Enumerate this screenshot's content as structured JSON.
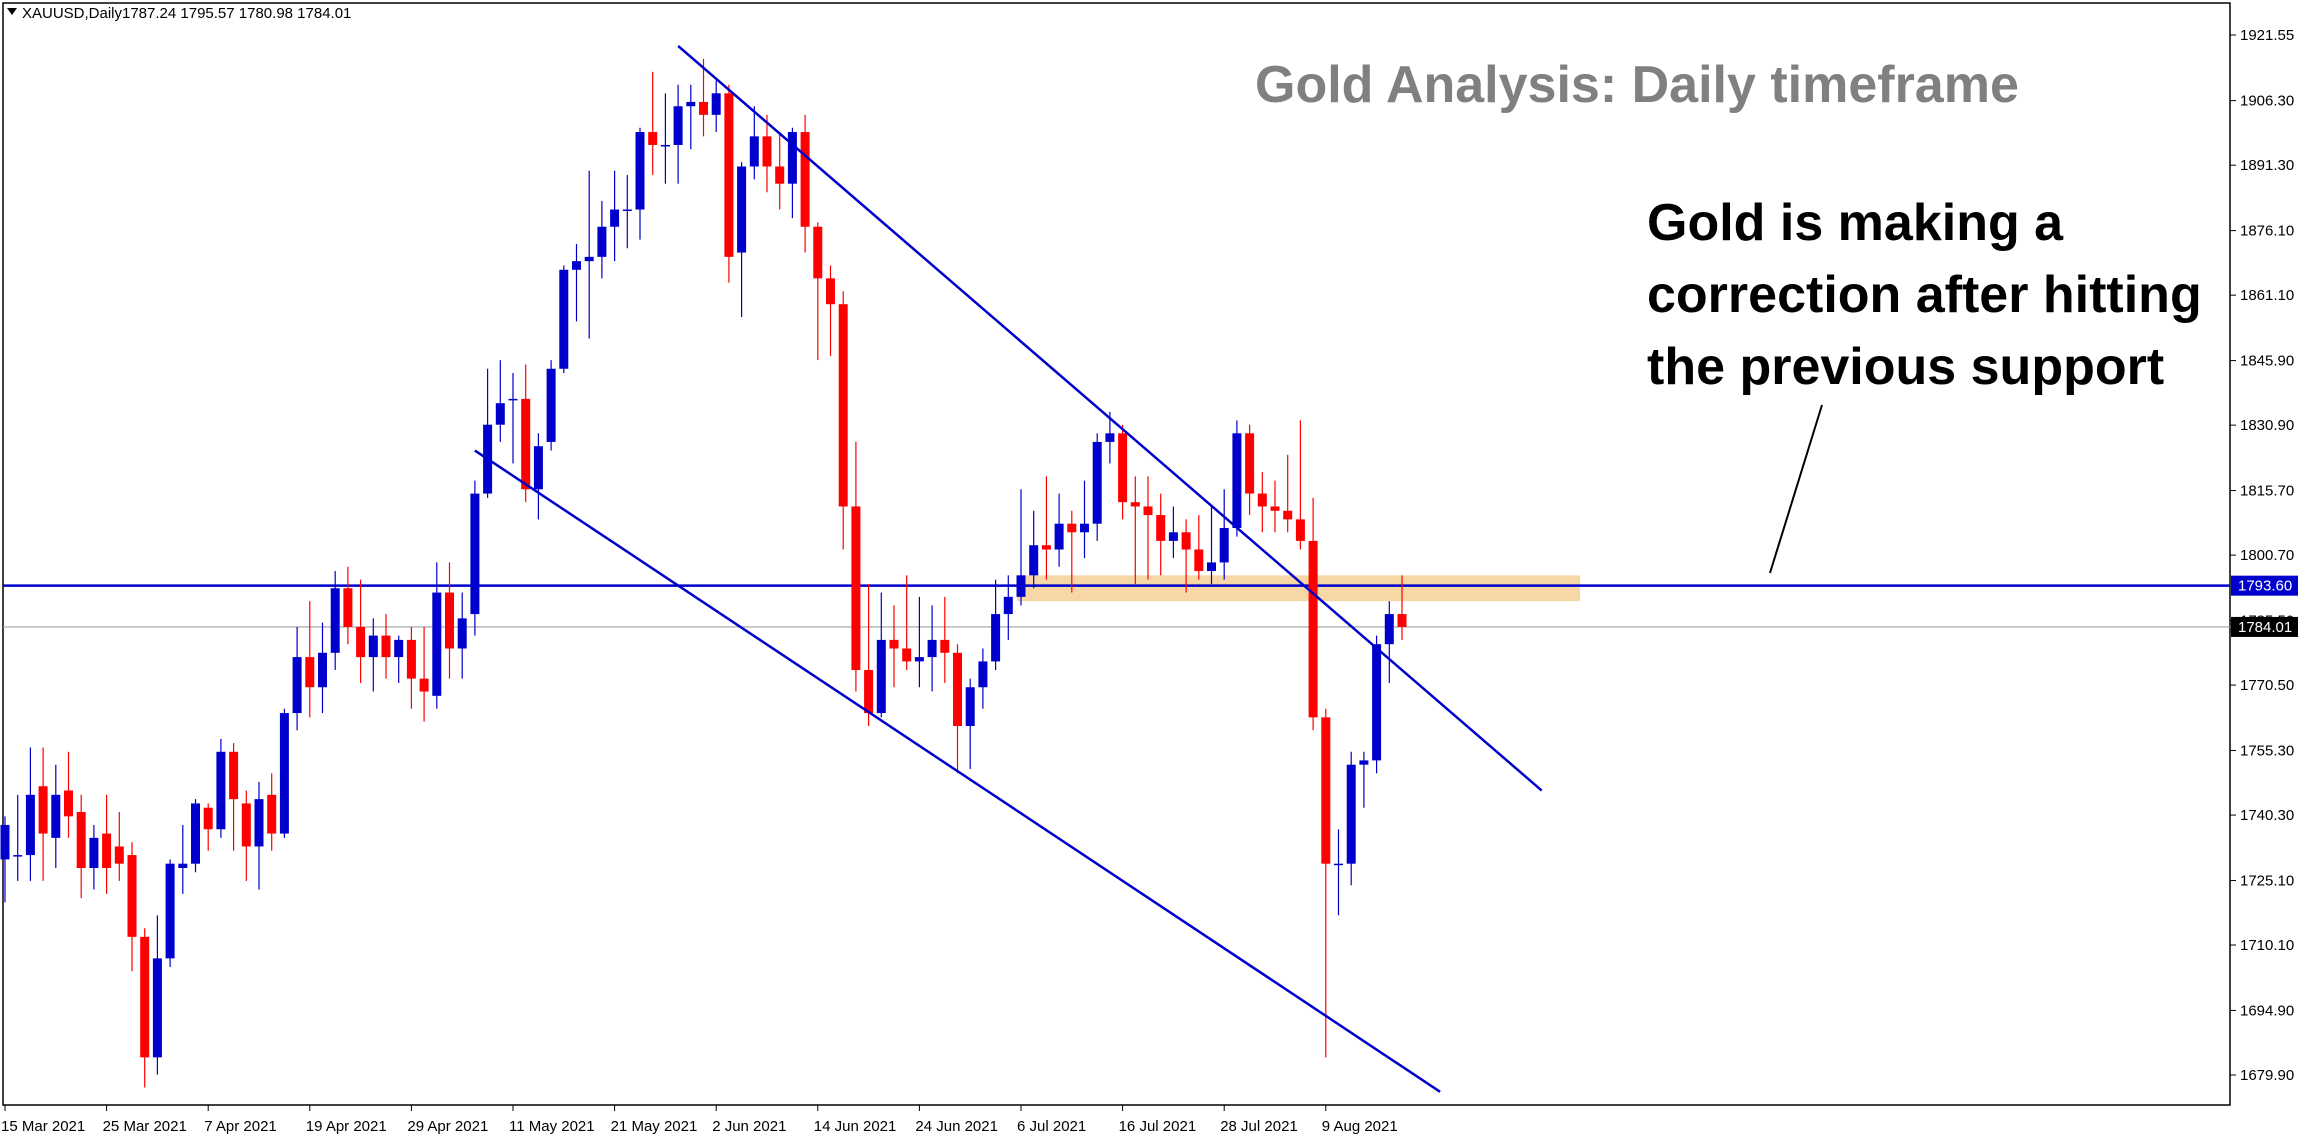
{
  "header": {
    "symbol": "XAUUSD,Daily",
    "ohlc": "1787.24 1795.57 1780.98 1784.01"
  },
  "annotations": {
    "title": "Gold Analysis: Daily timeframe",
    "note_lines": [
      "Gold is making a",
      "correction after hitting",
      "the previous support"
    ]
  },
  "colors": {
    "bull": "#0000cc",
    "bear": "#ff0000",
    "trendline": "#0000cc",
    "support_zone": "#f5c98a",
    "current_price_line": "#a0a0a0",
    "title": "#808080"
  },
  "chart_data": {
    "type": "candlestick",
    "symbol": "XAUUSD",
    "timeframe": "Daily",
    "y_ticks": [
      "1921.55",
      "1906.30",
      "1891.30",
      "1876.10",
      "1861.10",
      "1845.90",
      "1830.90",
      "1815.70",
      "1800.70",
      "1785.50",
      "1770.50",
      "1755.30",
      "1740.30",
      "1725.10",
      "1710.10",
      "1694.90",
      "1679.90"
    ],
    "ylim": [
      1675,
      1926
    ],
    "x_ticks": [
      "15 Mar 2021",
      "25 Mar 2021",
      "7 Apr 2021",
      "19 Apr 2021",
      "29 Apr 2021",
      "11 May 2021",
      "21 May 2021",
      "2 Jun 2021",
      "14 Jun 2021",
      "24 Jun 2021",
      "6 Jul 2021",
      "16 Jul 2021",
      "28 Jul 2021",
      "9 Aug 2021"
    ],
    "resistance_level": 1793.6,
    "resistance_label": "1793.60",
    "current_price": 1784.01,
    "current_price_label": "1784.01",
    "support_zone": {
      "from_date": "6 Jul 2021",
      "to_date": "20 Aug 2021",
      "low": 1790,
      "high": 1796
    },
    "trendlines": [
      {
        "name": "upper",
        "from": {
          "date": "28 May 2021",
          "price": 1919
        },
        "to": {
          "date": "1 Sep 2021",
          "price": 1746
        }
      },
      {
        "name": "lower",
        "from": {
          "date": "6 May 2021",
          "price": 1825
        },
        "to": {
          "date": "20 Aug 2021",
          "price": 1676
        }
      }
    ],
    "candles": [
      {
        "d": "15 Mar 2021",
        "o": 1730,
        "h": 1740,
        "l": 1720,
        "c": 1738
      },
      {
        "d": "16 Mar 2021",
        "o": 1731,
        "h": 1745,
        "l": 1725,
        "c": 1731
      },
      {
        "d": "17 Mar 2021",
        "o": 1731,
        "h": 1756,
        "l": 1725,
        "c": 1745
      },
      {
        "d": "18 Mar 2021",
        "o": 1747,
        "h": 1756,
        "l": 1725,
        "c": 1736
      },
      {
        "d": "19 Mar 2021",
        "o": 1735,
        "h": 1752,
        "l": 1728,
        "c": 1745
      },
      {
        "d": "22 Mar 2021",
        "o": 1746,
        "h": 1755,
        "l": 1735,
        "c": 1740
      },
      {
        "d": "23 Mar 2021",
        "o": 1741,
        "h": 1745,
        "l": 1721,
        "c": 1728
      },
      {
        "d": "24 Mar 2021",
        "o": 1728,
        "h": 1738,
        "l": 1723,
        "c": 1735
      },
      {
        "d": "25 Mar 2021",
        "o": 1736,
        "h": 1745,
        "l": 1722,
        "c": 1728
      },
      {
        "d": "26 Mar 2021",
        "o": 1733,
        "h": 1741,
        "l": 1725,
        "c": 1729
      },
      {
        "d": "29 Mar 2021",
        "o": 1731,
        "h": 1734,
        "l": 1704,
        "c": 1712
      },
      {
        "d": "30 Mar 2021",
        "o": 1712,
        "h": 1714,
        "l": 1677,
        "c": 1684
      },
      {
        "d": "31 Mar 2021",
        "o": 1684,
        "h": 1717,
        "l": 1680,
        "c": 1707
      },
      {
        "d": "1 Apr 2021",
        "o": 1707,
        "h": 1730,
        "l": 1705,
        "c": 1729
      },
      {
        "d": "5 Apr 2021",
        "o": 1728,
        "h": 1738,
        "l": 1722,
        "c": 1729
      },
      {
        "d": "6 Apr 2021",
        "o": 1729,
        "h": 1744,
        "l": 1727,
        "c": 1743
      },
      {
        "d": "7 Apr 2021",
        "o": 1742,
        "h": 1743,
        "l": 1732,
        "c": 1737
      },
      {
        "d": "8 Apr 2021",
        "o": 1737,
        "h": 1758,
        "l": 1735,
        "c": 1755
      },
      {
        "d": "9 Apr 2021",
        "o": 1755,
        "h": 1757,
        "l": 1732,
        "c": 1744
      },
      {
        "d": "12 Apr 2021",
        "o": 1743,
        "h": 1746,
        "l": 1725,
        "c": 1733
      },
      {
        "d": "13 Apr 2021",
        "o": 1733,
        "h": 1748,
        "l": 1723,
        "c": 1744
      },
      {
        "d": "14 Apr 2021",
        "o": 1745,
        "h": 1750,
        "l": 1732,
        "c": 1736
      },
      {
        "d": "15 Apr 2021",
        "o": 1736,
        "h": 1765,
        "l": 1735,
        "c": 1764
      },
      {
        "d": "16 Apr 2021",
        "o": 1764,
        "h": 1784,
        "l": 1760,
        "c": 1777
      },
      {
        "d": "19 Apr 2021",
        "o": 1777,
        "h": 1790,
        "l": 1763,
        "c": 1770
      },
      {
        "d": "20 Apr 2021",
        "o": 1770,
        "h": 1785,
        "l": 1764,
        "c": 1778
      },
      {
        "d": "21 Apr 2021",
        "o": 1778,
        "h": 1797,
        "l": 1774,
        "c": 1793
      },
      {
        "d": "22 Apr 2021",
        "o": 1793,
        "h": 1798,
        "l": 1780,
        "c": 1784
      },
      {
        "d": "23 Apr 2021",
        "o": 1784,
        "h": 1795,
        "l": 1771,
        "c": 1777
      },
      {
        "d": "26 Apr 2021",
        "o": 1777,
        "h": 1786,
        "l": 1769,
        "c": 1782
      },
      {
        "d": "27 Apr 2021",
        "o": 1782,
        "h": 1787,
        "l": 1772,
        "c": 1777
      },
      {
        "d": "28 Apr 2021",
        "o": 1777,
        "h": 1782,
        "l": 1771,
        "c": 1781
      },
      {
        "d": "29 Apr 2021",
        "o": 1781,
        "h": 1784,
        "l": 1765,
        "c": 1772
      },
      {
        "d": "30 Apr 2021",
        "o": 1772,
        "h": 1784,
        "l": 1762,
        "c": 1769
      },
      {
        "d": "3 May 2021",
        "o": 1768,
        "h": 1799,
        "l": 1765,
        "c": 1792
      },
      {
        "d": "4 May 2021",
        "o": 1792,
        "h": 1799,
        "l": 1772,
        "c": 1779
      },
      {
        "d": "5 May 2021",
        "o": 1779,
        "h": 1792,
        "l": 1772,
        "c": 1786
      },
      {
        "d": "6 May 2021",
        "o": 1787,
        "h": 1818,
        "l": 1782,
        "c": 1815
      },
      {
        "d": "7 May 2021",
        "o": 1815,
        "h": 1844,
        "l": 1814,
        "c": 1831
      },
      {
        "d": "10 May 2021",
        "o": 1831,
        "h": 1846,
        "l": 1827,
        "c": 1836
      },
      {
        "d": "11 May 2021",
        "o": 1837,
        "h": 1843,
        "l": 1822,
        "c": 1837
      },
      {
        "d": "12 May 2021",
        "o": 1837,
        "h": 1845,
        "l": 1813,
        "c": 1816
      },
      {
        "d": "13 May 2021",
        "o": 1816,
        "h": 1829,
        "l": 1809,
        "c": 1826
      },
      {
        "d": "14 May 2021",
        "o": 1827,
        "h": 1846,
        "l": 1825,
        "c": 1844
      },
      {
        "d": "17 May 2021",
        "o": 1844,
        "h": 1868,
        "l": 1843,
        "c": 1867
      },
      {
        "d": "18 May 2021",
        "o": 1867,
        "h": 1873,
        "l": 1855,
        "c": 1869
      },
      {
        "d": "19 May 2021",
        "o": 1869,
        "h": 1890,
        "l": 1851,
        "c": 1870
      },
      {
        "d": "20 May 2021",
        "o": 1870,
        "h": 1883,
        "l": 1865,
        "c": 1877
      },
      {
        "d": "21 May 2021",
        "o": 1877,
        "h": 1890,
        "l": 1869,
        "c": 1881
      },
      {
        "d": "24 May 2021",
        "o": 1881,
        "h": 1889,
        "l": 1872,
        "c": 1881
      },
      {
        "d": "25 May 2021",
        "o": 1881,
        "h": 1900,
        "l": 1874,
        "c": 1899
      },
      {
        "d": "26 May 2021",
        "o": 1899,
        "h": 1913,
        "l": 1889,
        "c": 1896
      },
      {
        "d": "27 May 2021",
        "o": 1896,
        "h": 1908,
        "l": 1887,
        "c": 1896
      },
      {
        "d": "28 May 2021",
        "o": 1896,
        "h": 1910,
        "l": 1887,
        "c": 1905
      },
      {
        "d": "31 May 2021",
        "o": 1905,
        "h": 1910,
        "l": 1895,
        "c": 1906
      },
      {
        "d": "1 Jun 2021",
        "o": 1906,
        "h": 1916,
        "l": 1898,
        "c": 1903
      },
      {
        "d": "2 Jun 2021",
        "o": 1903,
        "h": 1911,
        "l": 1899,
        "c": 1908
      },
      {
        "d": "3 Jun 2021",
        "o": 1908,
        "h": 1910,
        "l": 1864,
        "c": 1870
      },
      {
        "d": "4 Jun 2021",
        "o": 1871,
        "h": 1892,
        "l": 1856,
        "c": 1891
      },
      {
        "d": "7 Jun 2021",
        "o": 1891,
        "h": 1905,
        "l": 1888,
        "c": 1898
      },
      {
        "d": "8 Jun 2021",
        "o": 1898,
        "h": 1903,
        "l": 1885,
        "c": 1891
      },
      {
        "d": "9 Jun 2021",
        "o": 1891,
        "h": 1899,
        "l": 1881,
        "c": 1887
      },
      {
        "d": "10 Jun 2021",
        "o": 1887,
        "h": 1900,
        "l": 1879,
        "c": 1899
      },
      {
        "d": "11 Jun 2021",
        "o": 1899,
        "h": 1903,
        "l": 1871,
        "c": 1877
      },
      {
        "d": "14 Jun 2021",
        "o": 1877,
        "h": 1878,
        "l": 1846,
        "c": 1865
      },
      {
        "d": "15 Jun 2021",
        "o": 1865,
        "h": 1868,
        "l": 1847,
        "c": 1859
      },
      {
        "d": "16 Jun 2021",
        "o": 1859,
        "h": 1862,
        "l": 1802,
        "c": 1812
      },
      {
        "d": "17 Jun 2021",
        "o": 1812,
        "h": 1827,
        "l": 1769,
        "c": 1774
      },
      {
        "d": "18 Jun 2021",
        "o": 1774,
        "h": 1794,
        "l": 1761,
        "c": 1764
      },
      {
        "d": "21 Jun 2021",
        "o": 1764,
        "h": 1792,
        "l": 1763,
        "c": 1781
      },
      {
        "d": "22 Jun 2021",
        "o": 1781,
        "h": 1789,
        "l": 1770,
        "c": 1779
      },
      {
        "d": "23 Jun 2021",
        "o": 1779,
        "h": 1796,
        "l": 1774,
        "c": 1776
      },
      {
        "d": "24 Jun 2021",
        "o": 1776,
        "h": 1791,
        "l": 1770,
        "c": 1777
      },
      {
        "d": "25 Jun 2021",
        "o": 1777,
        "h": 1789,
        "l": 1769,
        "c": 1781
      },
      {
        "d": "28 Jun 2021",
        "o": 1781,
        "h": 1791,
        "l": 1771,
        "c": 1778
      },
      {
        "d": "29 Jun 2021",
        "o": 1778,
        "h": 1780,
        "l": 1750,
        "c": 1761
      },
      {
        "d": "30 Jun 2021",
        "o": 1761,
        "h": 1772,
        "l": 1751,
        "c": 1770
      },
      {
        "d": "1 Jul 2021",
        "o": 1770,
        "h": 1779,
        "l": 1765,
        "c": 1776
      },
      {
        "d": "2 Jul 2021",
        "o": 1776,
        "h": 1795,
        "l": 1774,
        "c": 1787
      },
      {
        "d": "5 Jul 2021",
        "o": 1787,
        "h": 1796,
        "l": 1781,
        "c": 1791
      },
      {
        "d": "6 Jul 2021",
        "o": 1791,
        "h": 1816,
        "l": 1789,
        "c": 1796
      },
      {
        "d": "7 Jul 2021",
        "o": 1796,
        "h": 1811,
        "l": 1793,
        "c": 1803
      },
      {
        "d": "8 Jul 2021",
        "o": 1803,
        "h": 1819,
        "l": 1795,
        "c": 1802
      },
      {
        "d": "9 Jul 2021",
        "o": 1802,
        "h": 1815,
        "l": 1798,
        "c": 1808
      },
      {
        "d": "12 Jul 2021",
        "o": 1808,
        "h": 1811,
        "l": 1792,
        "c": 1806
      },
      {
        "d": "13 Jul 2021",
        "o": 1806,
        "h": 1818,
        "l": 1800,
        "c": 1808
      },
      {
        "d": "14 Jul 2021",
        "o": 1808,
        "h": 1829,
        "l": 1804,
        "c": 1827
      },
      {
        "d": "15 Jul 2021",
        "o": 1827,
        "h": 1834,
        "l": 1822,
        "c": 1829
      },
      {
        "d": "16 Jul 2021",
        "o": 1829,
        "h": 1831,
        "l": 1809,
        "c": 1813
      },
      {
        "d": "19 Jul 2021",
        "o": 1813,
        "h": 1819,
        "l": 1794,
        "c": 1812
      },
      {
        "d": "20 Jul 2021",
        "o": 1812,
        "h": 1819,
        "l": 1795,
        "c": 1810
      },
      {
        "d": "21 Jul 2021",
        "o": 1810,
        "h": 1815,
        "l": 1796,
        "c": 1804
      },
      {
        "d": "22 Jul 2021",
        "o": 1804,
        "h": 1812,
        "l": 1800,
        "c": 1806
      },
      {
        "d": "23 Jul 2021",
        "o": 1806,
        "h": 1809,
        "l": 1792,
        "c": 1802
      },
      {
        "d": "26 Jul 2021",
        "o": 1802,
        "h": 1810,
        "l": 1795,
        "c": 1797
      },
      {
        "d": "27 Jul 2021",
        "o": 1797,
        "h": 1812,
        "l": 1794,
        "c": 1799
      },
      {
        "d": "28 Jul 2021",
        "o": 1799,
        "h": 1816,
        "l": 1795,
        "c": 1807
      },
      {
        "d": "29 Jul 2021",
        "o": 1807,
        "h": 1832,
        "l": 1805,
        "c": 1829
      },
      {
        "d": "30 Jul 2021",
        "o": 1829,
        "h": 1831,
        "l": 1810,
        "c": 1815
      },
      {
        "d": "2 Aug 2021",
        "o": 1815,
        "h": 1820,
        "l": 1806,
        "c": 1812
      },
      {
        "d": "3 Aug 2021",
        "o": 1812,
        "h": 1818,
        "l": 1806,
        "c": 1811
      },
      {
        "d": "4 Aug 2021",
        "o": 1811,
        "h": 1824,
        "l": 1806,
        "c": 1809
      },
      {
        "d": "5 Aug 2021",
        "o": 1809,
        "h": 1832,
        "l": 1802,
        "c": 1804
      },
      {
        "d": "6 Aug 2021",
        "o": 1804,
        "h": 1814,
        "l": 1760,
        "c": 1763
      },
      {
        "d": "9 Aug 2021",
        "o": 1763,
        "h": 1765,
        "l": 1684,
        "c": 1729
      },
      {
        "d": "10 Aug 2021",
        "o": 1729,
        "h": 1737,
        "l": 1717,
        "c": 1729
      },
      {
        "d": "11 Aug 2021",
        "o": 1729,
        "h": 1755,
        "l": 1724,
        "c": 1752
      },
      {
        "d": "12 Aug 2021",
        "o": 1752,
        "h": 1755,
        "l": 1742,
        "c": 1753
      },
      {
        "d": "13 Aug 2021",
        "o": 1753,
        "h": 1782,
        "l": 1750,
        "c": 1780
      },
      {
        "d": "16 Aug 2021",
        "o": 1780,
        "h": 1790,
        "l": 1771,
        "c": 1787
      },
      {
        "d": "17 Aug 2021",
        "o": 1787,
        "h": 1796,
        "l": 1781,
        "c": 1784
      }
    ]
  }
}
